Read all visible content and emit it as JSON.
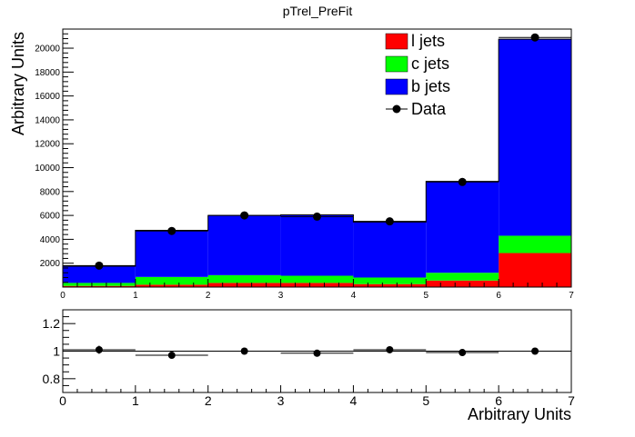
{
  "chart_data": [
    {
      "type": "bar",
      "stacked": true,
      "title": "pTrel_PreFit",
      "xlabel": "",
      "ylabel": "Arbitrary Units",
      "bin_edges": [
        0,
        1,
        2,
        3,
        4,
        5,
        6,
        7
      ],
      "xlim": [
        0,
        7
      ],
      "ylim": [
        0,
        21600
      ],
      "y_ticks": [
        2000,
        4000,
        6000,
        8000,
        10000,
        12000,
        14000,
        16000,
        18000,
        20000
      ],
      "x_ticks": [
        0,
        1,
        2,
        3,
        4,
        5,
        6,
        7
      ],
      "legend_position": "top-right",
      "series": [
        {
          "name": "l jets",
          "color": "#ff0000",
          "values": [
            100,
            200,
            350,
            350,
            250,
            550,
            2850
          ]
        },
        {
          "name": "c jets",
          "color": "#00ff00",
          "values": [
            250,
            650,
            650,
            600,
            550,
            650,
            1450
          ]
        },
        {
          "name": "b jets",
          "color": "#0000ff",
          "values": [
            1400,
            3900,
            5000,
            5100,
            4650,
            7650,
            16450
          ]
        }
      ],
      "data_points": {
        "name": "Data",
        "x": [
          0.5,
          1.5,
          2.5,
          3.5,
          4.5,
          5.5,
          6.5
        ],
        "y": [
          1800,
          4700,
          6000,
          5900,
          5500,
          8800,
          20900
        ]
      }
    },
    {
      "type": "scatter",
      "title": "",
      "xlabel": "Arbitrary Units",
      "ylabel": "",
      "xlim": [
        0,
        7
      ],
      "ylim": [
        0.7,
        1.3
      ],
      "y_ticks": [
        0.8,
        1,
        1.2
      ],
      "y_tick_labels": [
        "0.8",
        "1",
        "1.2"
      ],
      "x_ticks": [
        0,
        1,
        2,
        3,
        4,
        5,
        6,
        7
      ],
      "reference_line": 1,
      "points": {
        "x": [
          0.5,
          1.5,
          2.5,
          3.5,
          4.5,
          5.5,
          6.5
        ],
        "y": [
          1.01,
          0.97,
          1.0,
          0.985,
          1.01,
          0.99,
          1.0
        ],
        "yerr": [
          0.03,
          0.015,
          0.01,
          0.012,
          0.012,
          0.01,
          0.005
        ]
      }
    }
  ]
}
